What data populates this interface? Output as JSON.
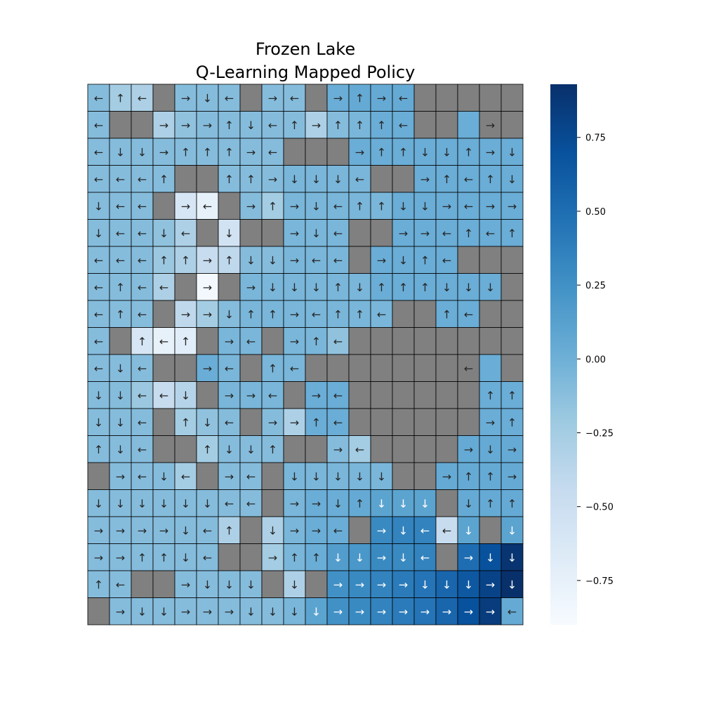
{
  "chart_data": {
    "type": "heatmap",
    "title": [
      "Frozen Lake",
      "Q-Learning Mapped Policy"
    ],
    "colormap": "Blues",
    "masked_color": "#808080",
    "vmin": -0.9,
    "vmax": 0.93,
    "colorbar_ticks": [
      0.75,
      0.5,
      0.25,
      0.0,
      -0.25,
      -0.5,
      -0.75
    ],
    "colorbar_tick_labels": [
      "0.75",
      "0.50",
      "0.25",
      "0.00",
      "−0.25",
      "−0.50",
      "−0.75"
    ],
    "arrows": [
      "←↑← →↓← →← →↑→←     ",
      "←  →→→↑↓←↑→↑↑↑←   →  ",
      "←↓↓→↑↑↑→←   →↑↑↓↓↑→↓",
      "←←←↑  ↑↑→↓↓↓←  →↑←↑↓",
      "↓←← →← →↑→↓←↑↑↓↓→←→→",
      "↓←←↓← ↓  →↓←  →→←↑←↑",
      "←←←↑↑→↑↓↓→←← →↓↑←   ",
      "←↑←← → →↓↓↓↑↓↑↑↑↓↓↓ ",
      "←↑← →→↓↑↑→←↑↑←  ↑←  ",
      "← ↑←↑ →← →↑←        ",
      "←↓←  →← ↑←       ← ",
      "↓↓←←↓ →→← →←      ↑↑",
      "↓↓← ↑↓← →→↑←      →↑",
      "↑↓←  ↑↓↓↑  →←    →↓→",
      " →←↓← →← ↓↓↓↓↓  →↑↑→",
      "↓↓↓↓↓↓←← →→↓↑↓↓↓ ↓↑↑",
      "→→→→↓←↑ ↓→→← →↓←←↓ ↓",
      "→→↑↑↓←  →↑↑↓↓→↓← →↓↓",
      "↑←  →↓↓↓ ↓ →→→→↓↓↓→↓",
      " →↓↓→→→↓↓↓↓→→→→→→→→←"
    ],
    "values": [
      [
        -0.1,
        -0.25,
        -0.3,
        null,
        -0.1,
        -0.1,
        -0.1,
        null,
        -0.1,
        -0.1,
        null,
        0.02,
        0.05,
        0.05,
        0.05,
        null,
        null,
        null,
        null,
        null
      ],
      [
        -0.1,
        null,
        null,
        -0.3,
        -0.15,
        -0.1,
        -0.1,
        -0.1,
        -0.1,
        -0.1,
        -0.3,
        -0.1,
        -0.05,
        0.02,
        0.02,
        null,
        null,
        0.02,
        null,
        null
      ],
      [
        -0.1,
        -0.1,
        -0.1,
        -0.1,
        -0.1,
        -0.1,
        -0.1,
        -0.1,
        -0.1,
        null,
        null,
        null,
        0.02,
        0.02,
        0.02,
        0.02,
        0.02,
        0.02,
        0.02,
        0.02
      ],
      [
        -0.1,
        -0.1,
        -0.1,
        -0.1,
        null,
        null,
        -0.1,
        -0.1,
        -0.1,
        -0.05,
        -0.05,
        -0.05,
        -0.05,
        null,
        null,
        0.02,
        0.02,
        0.02,
        0.02,
        0.02
      ],
      [
        -0.1,
        -0.1,
        -0.1,
        null,
        -0.6,
        -0.75,
        null,
        -0.1,
        -0.25,
        -0.05,
        -0.05,
        -0.05,
        -0.05,
        -0.05,
        0.02,
        0.02,
        0.02,
        0.02,
        0.02,
        0.02
      ],
      [
        -0.1,
        -0.1,
        -0.1,
        -0.15,
        -0.3,
        null,
        -0.55,
        null,
        null,
        -0.05,
        -0.05,
        -0.05,
        null,
        null,
        0.02,
        0.02,
        0.02,
        0.02,
        0.02,
        0.02
      ],
      [
        -0.1,
        -0.1,
        -0.1,
        -0.2,
        -0.3,
        -0.45,
        -0.4,
        -0.1,
        -0.1,
        -0.05,
        -0.05,
        -0.05,
        null,
        0.02,
        0.02,
        0.02,
        0.02,
        null,
        null,
        null
      ],
      [
        -0.1,
        -0.1,
        -0.1,
        -0.3,
        null,
        -0.85,
        null,
        -0.05,
        -0.05,
        -0.05,
        -0.05,
        -0.05,
        -0.05,
        0.02,
        0.02,
        0.02,
        0.02,
        0.02,
        0.02,
        null
      ],
      [
        -0.1,
        -0.1,
        -0.1,
        null,
        -0.4,
        -0.25,
        -0.1,
        -0.05,
        -0.05,
        -0.05,
        -0.05,
        -0.05,
        -0.05,
        -0.05,
        null,
        null,
        0.02,
        0.02,
        null,
        null
      ],
      [
        -0.1,
        null,
        -0.6,
        -0.75,
        -0.7,
        null,
        -0.05,
        -0.05,
        null,
        -0.05,
        -0.05,
        -0.15,
        null,
        null,
        null,
        null,
        null,
        null,
        null,
        null
      ],
      [
        -0.1,
        -0.1,
        -0.1,
        null,
        null,
        0.02,
        -0.05,
        null,
        -0.05,
        -0.05,
        null,
        null,
        null,
        null,
        null,
        null,
        null,
        null,
        0.02,
        null
      ],
      [
        -0.1,
        -0.1,
        -0.2,
        -0.45,
        -0.35,
        null,
        -0.05,
        -0.05,
        -0.05,
        null,
        0.02,
        0.02,
        null,
        null,
        null,
        null,
        null,
        null,
        0.02,
        0.02
      ],
      [
        -0.1,
        -0.1,
        -0.1,
        null,
        -0.25,
        -0.15,
        -0.1,
        null,
        -0.1,
        -0.3,
        0.02,
        0.02,
        null,
        null,
        null,
        null,
        null,
        null,
        0.02,
        0.02
      ],
      [
        -0.1,
        -0.1,
        -0.1,
        null,
        null,
        -0.25,
        -0.1,
        -0.1,
        -0.1,
        null,
        null,
        -0.1,
        -0.25,
        null,
        null,
        null,
        null,
        0.05,
        0.05,
        0.05
      ],
      [
        null,
        -0.1,
        -0.1,
        -0.1,
        -0.25,
        null,
        -0.1,
        -0.1,
        null,
        -0.05,
        -0.05,
        -0.05,
        -0.05,
        -0.05,
        null,
        null,
        0.05,
        0.05,
        0.05,
        0.05
      ],
      [
        -0.1,
        -0.1,
        -0.1,
        -0.1,
        -0.1,
        -0.1,
        -0.1,
        -0.1,
        null,
        -0.05,
        0.02,
        0.02,
        0.05,
        0.1,
        0.1,
        0.1,
        null,
        0.05,
        0.05,
        0.05
      ],
      [
        -0.1,
        -0.1,
        -0.1,
        -0.1,
        -0.1,
        -0.1,
        -0.3,
        null,
        -0.3,
        -0.05,
        0.02,
        0.02,
        null,
        0.3,
        0.35,
        0.35,
        -0.45,
        0.1,
        null,
        0.1
      ],
      [
        -0.1,
        -0.1,
        -0.1,
        -0.1,
        -0.1,
        -0.1,
        null,
        null,
        -0.25,
        -0.05,
        0.02,
        0.15,
        0.2,
        0.3,
        0.3,
        0.35,
        null,
        0.5,
        0.7,
        0.9
      ],
      [
        -0.1,
        -0.1,
        null,
        null,
        -0.1,
        -0.1,
        -0.1,
        -0.1,
        null,
        -0.3,
        null,
        0.25,
        0.3,
        0.35,
        0.4,
        0.45,
        0.55,
        0.65,
        0.8,
        0.93
      ],
      [
        null,
        -0.1,
        -0.1,
        -0.1,
        -0.1,
        -0.1,
        -0.1,
        -0.1,
        -0.1,
        -0.05,
        0.1,
        0.25,
        0.3,
        0.35,
        0.4,
        0.45,
        0.55,
        0.7,
        0.85,
        0.05
      ]
    ]
  }
}
